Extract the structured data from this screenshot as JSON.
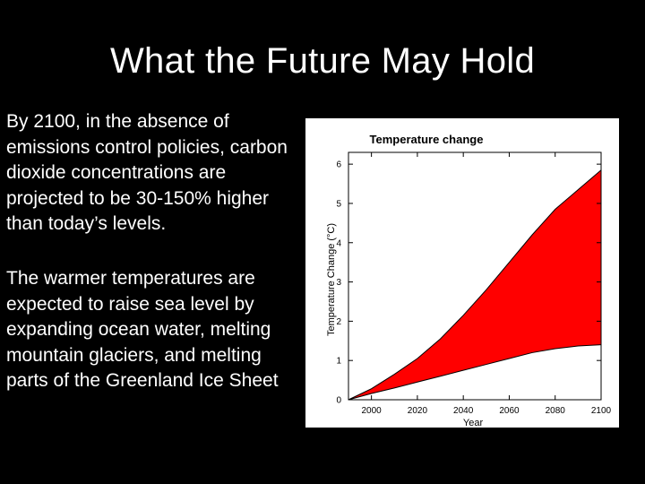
{
  "slide": {
    "title": "What the Future May Hold",
    "bullets": [
      "By 2100, in the absence of emissions control policies, carbon dioxide concentrations are projected to be 30-150% higher than today’s levels.",
      "The warmer temperatures are expected to raise sea level by expanding ocean water, melting mountain glaciers, and melting parts of the Greenland Ice Sheet"
    ]
  },
  "colors": {
    "background": "#000000",
    "text": "#ffffff",
    "band_fill": "#ff0000"
  },
  "chart_data": {
    "type": "area",
    "title": "Temperature change",
    "xlabel": "Year",
    "ylabel": "Temperature Change (°C)",
    "xlim": [
      1990,
      2100
    ],
    "ylim": [
      0,
      6.3
    ],
    "x_ticks": [
      2000,
      2020,
      2040,
      2060,
      2080,
      2100
    ],
    "y_ticks": [
      0,
      1,
      2,
      3,
      4,
      5,
      6
    ],
    "grid": false,
    "legend": "none",
    "x": [
      1990,
      2000,
      2010,
      2020,
      2030,
      2040,
      2050,
      2060,
      2070,
      2080,
      2090,
      2100
    ],
    "series": [
      {
        "name": "",
        "role": "upper bound",
        "values": [
          0.0,
          0.28,
          0.65,
          1.05,
          1.55,
          2.15,
          2.8,
          3.5,
          4.2,
          4.85,
          5.35,
          5.85
        ]
      },
      {
        "name": "",
        "role": "lower bound",
        "values": [
          0.0,
          0.16,
          0.3,
          0.45,
          0.6,
          0.75,
          0.9,
          1.05,
          1.2,
          1.3,
          1.37,
          1.4
        ]
      }
    ]
  }
}
